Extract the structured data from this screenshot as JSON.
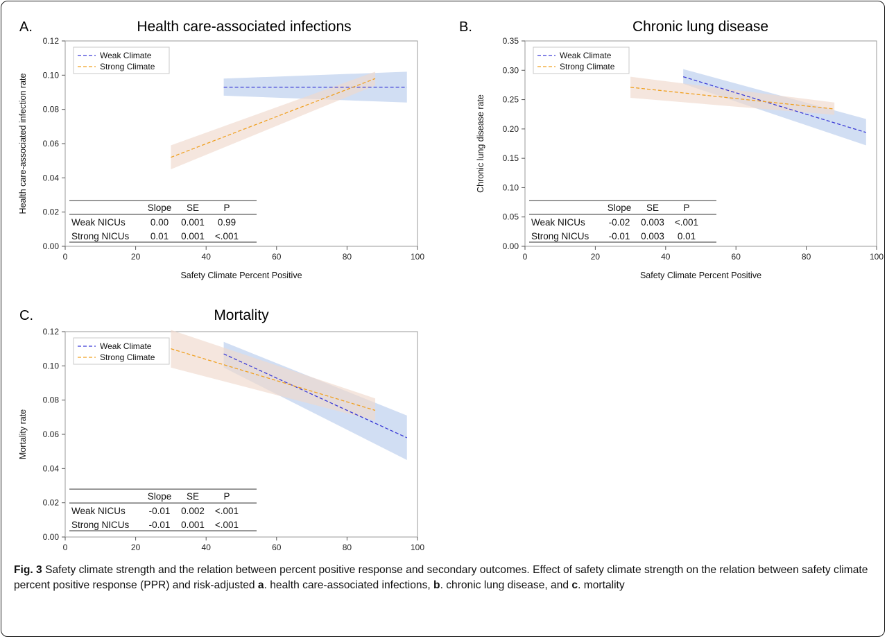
{
  "figure": {
    "caption_label": "Fig. 3",
    "caption_text_1": " Safety climate strength and the relation between percent positive response and secondary outcomes. Effect of safety climate strength on the relation between safety climate percent positive response (PPR) and risk-adjusted ",
    "caption_bold_a": "a",
    "caption_text_2": ". health care-associated infections, ",
    "caption_bold_b": "b",
    "caption_text_3": ". chronic lung disease, and ",
    "caption_bold_c": "c",
    "caption_text_4": ". mortality"
  },
  "colors": {
    "weak": "#3a3ad6",
    "strong": "#f0a020",
    "weak_band": "#b8ccec",
    "strong_band": "#f0d9cc"
  },
  "chart_data": [
    {
      "type": "line",
      "letter": "A.",
      "title": "Health care-associated infections",
      "xlabel": "Safety Climate Percent Positive",
      "ylabel": "Health care-associated infection rate",
      "xlim": [
        0,
        100
      ],
      "ylim": [
        0,
        0.12
      ],
      "xticks": [
        "0",
        "20",
        "40",
        "60",
        "80",
        "100"
      ],
      "yticks": [
        "0.00",
        "0.02",
        "0.04",
        "0.06",
        "0.08",
        "0.10",
        "0.12"
      ],
      "legend": [
        "Weak Climate",
        "Strong Climate"
      ],
      "legend_position": "top-left",
      "series": [
        {
          "name": "Weak Climate",
          "x": [
            45,
            97
          ],
          "y": [
            0.093,
            0.093
          ],
          "lower": [
            0.088,
            0.084
          ],
          "upper": [
            0.098,
            0.102
          ]
        },
        {
          "name": "Strong Climate",
          "x": [
            30,
            88
          ],
          "y": [
            0.052,
            0.098
          ],
          "lower": [
            0.045,
            0.094
          ],
          "upper": [
            0.059,
            0.102
          ]
        }
      ],
      "table": {
        "columns": [
          "",
          "Slope",
          "SE",
          "P"
        ],
        "rows": [
          [
            "Weak NICUs",
            "0.00",
            "0.001",
            "0.99"
          ],
          [
            "Strong NICUs",
            "0.01",
            "0.001",
            "<.001"
          ]
        ]
      }
    },
    {
      "type": "line",
      "letter": "B.",
      "title": "Chronic lung disease",
      "xlabel": "Safety Climate Percent Positive",
      "ylabel": "Chronic lung disease rate",
      "xlim": [
        0,
        100
      ],
      "ylim": [
        0,
        0.35
      ],
      "xticks": [
        "0",
        "20",
        "40",
        "60",
        "80",
        "100"
      ],
      "yticks": [
        "0.00",
        "0.05",
        "0.10",
        "0.15",
        "0.20",
        "0.25",
        "0.30",
        "0.35"
      ],
      "legend": [
        "Weak Climate",
        "Strong Climate"
      ],
      "legend_position": "top-left",
      "series": [
        {
          "name": "Weak Climate",
          "x": [
            45,
            97
          ],
          "y": [
            0.289,
            0.194
          ],
          "lower": [
            0.277,
            0.172
          ],
          "upper": [
            0.302,
            0.217
          ]
        },
        {
          "name": "Strong Climate",
          "x": [
            30,
            88
          ],
          "y": [
            0.271,
            0.234
          ],
          "lower": [
            0.253,
            0.224
          ],
          "upper": [
            0.289,
            0.245
          ]
        }
      ],
      "table": {
        "columns": [
          "",
          "Slope",
          "SE",
          "P"
        ],
        "rows": [
          [
            "Weak NICUs",
            "-0.02",
            "0.003",
            "<.001"
          ],
          [
            "Strong NICUs",
            "-0.01",
            "0.003",
            "0.01"
          ]
        ]
      }
    },
    {
      "type": "line",
      "letter": "C.",
      "title": "Mortality",
      "xlabel": "Safety Climate Percent Positive",
      "ylabel": "Mortality rate",
      "xlim": [
        0,
        100
      ],
      "ylim": [
        0,
        0.12
      ],
      "xticks": [
        "0",
        "20",
        "40",
        "60",
        "80",
        "100"
      ],
      "yticks": [
        "0.00",
        "0.02",
        "0.04",
        "0.06",
        "0.08",
        "0.10",
        "0.12"
      ],
      "legend": [
        "Weak Climate",
        "Strong Climate"
      ],
      "legend_position": "top-left",
      "series": [
        {
          "name": "Weak Climate",
          "x": [
            45,
            97
          ],
          "y": [
            0.107,
            0.058
          ],
          "lower": [
            0.099,
            0.045
          ],
          "upper": [
            0.114,
            0.071
          ]
        },
        {
          "name": "Strong Climate",
          "x": [
            30,
            88
          ],
          "y": [
            0.11,
            0.074
          ],
          "lower": [
            0.099,
            0.068
          ],
          "upper": [
            0.121,
            0.081
          ]
        }
      ],
      "table": {
        "columns": [
          "",
          "Slope",
          "SE",
          "P"
        ],
        "rows": [
          [
            "Weak NICUs",
            "-0.01",
            "0.002",
            "<.001"
          ],
          [
            "Strong NICUs",
            "-0.01",
            "0.001",
            "<.001"
          ]
        ]
      }
    }
  ]
}
